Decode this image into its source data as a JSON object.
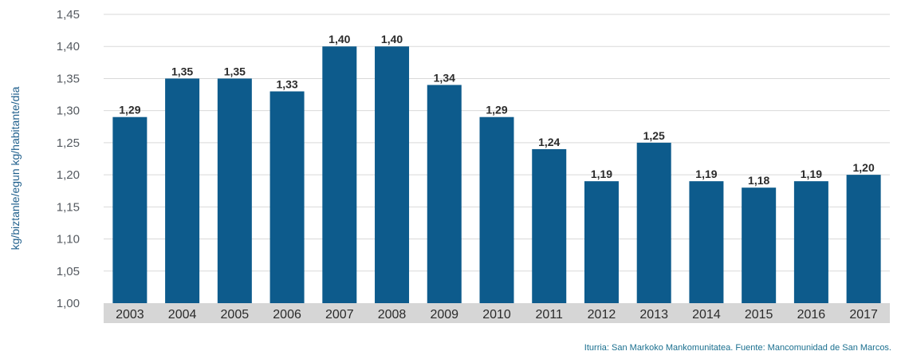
{
  "chart_data": {
    "type": "bar",
    "categories": [
      "2003",
      "2004",
      "2005",
      "2006",
      "2007",
      "2008",
      "2009",
      "2010",
      "2011",
      "2012",
      "2013",
      "2014",
      "2015",
      "2016",
      "2017"
    ],
    "values": [
      1.29,
      1.35,
      1.35,
      1.33,
      1.4,
      1.4,
      1.34,
      1.29,
      1.24,
      1.19,
      1.25,
      1.19,
      1.18,
      1.19,
      1.2
    ],
    "data_labels": [
      "1,29",
      "1,35",
      "1,35",
      "1,33",
      "1,40",
      "1,40",
      "1,34",
      "1,29",
      "1,24",
      "1,19",
      "1,25",
      "1,19",
      "1,18",
      "1,19",
      "1,20"
    ],
    "ylim": [
      1.0,
      1.45
    ],
    "yticks": [
      1.0,
      1.05,
      1.1,
      1.15,
      1.2,
      1.25,
      1.3,
      1.35,
      1.4,
      1.45
    ],
    "ytick_labels": [
      "1,00",
      "1,05",
      "1,10",
      "1,15",
      "1,20",
      "1,25",
      "1,30",
      "1,35",
      "1,40",
      "1,45"
    ],
    "ylabel": "kg/biztanle/egun kg/habitante/dia",
    "xlabel": "",
    "grid": true,
    "bar_color": "#0d5b8c",
    "axis_band_color": "#d6d6d6",
    "grid_color": "#d9d9d9"
  },
  "source_text": "Iturria: San Markoko Mankomunitatea.  Fuente: Mancomunidad de San Marcos."
}
